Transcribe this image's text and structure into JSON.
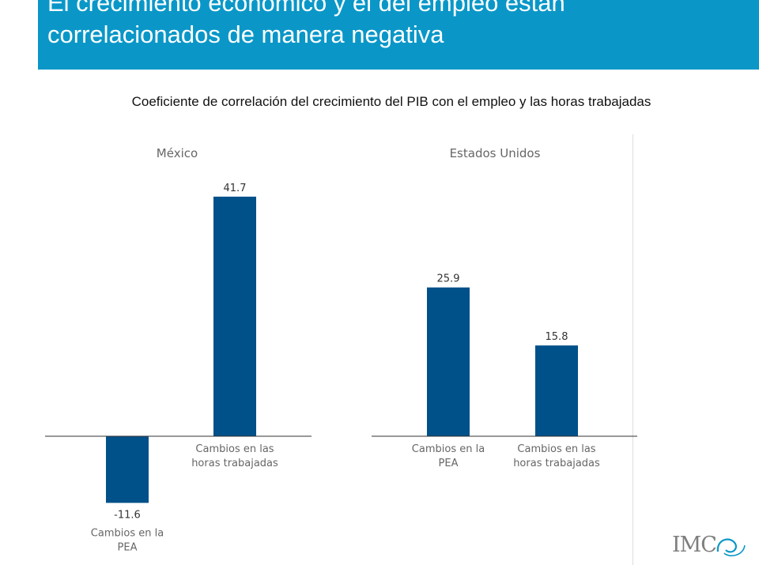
{
  "header": {
    "title": "El crecimiento económico y el del empleo están correlacionados de manera negativa",
    "background_color": "#0a97c8"
  },
  "subtitle": "Coeficiente de correlación del crecimiento del PIB con el empleo y las horas trabajadas",
  "chart_data": [
    {
      "type": "bar",
      "title": "México",
      "categories": [
        "Cambios en la PEA",
        "Cambios en las horas trabajadas"
      ],
      "category_lines": [
        [
          "Cambios en la",
          "PEA"
        ],
        [
          "Cambios en las",
          "horas trabajadas"
        ]
      ],
      "values": [
        -11.6,
        41.7
      ],
      "value_labels": [
        "-11.6",
        "41.7"
      ],
      "bar_color": "#00508a",
      "grid": false
    },
    {
      "type": "bar",
      "title": "Estados Unidos",
      "categories": [
        "Cambios en la PEA",
        "Cambios en las horas trabajadas"
      ],
      "category_lines": [
        [
          "Cambios en la",
          "PEA"
        ],
        [
          "Cambios en las",
          "horas trabajadas"
        ]
      ],
      "values": [
        25.9,
        15.8
      ],
      "value_labels": [
        "25.9",
        "15.8"
      ],
      "bar_color": "#00508a",
      "grid": false
    }
  ],
  "logo": {
    "text": "IMC",
    "accent_color": "#0a97c8"
  }
}
